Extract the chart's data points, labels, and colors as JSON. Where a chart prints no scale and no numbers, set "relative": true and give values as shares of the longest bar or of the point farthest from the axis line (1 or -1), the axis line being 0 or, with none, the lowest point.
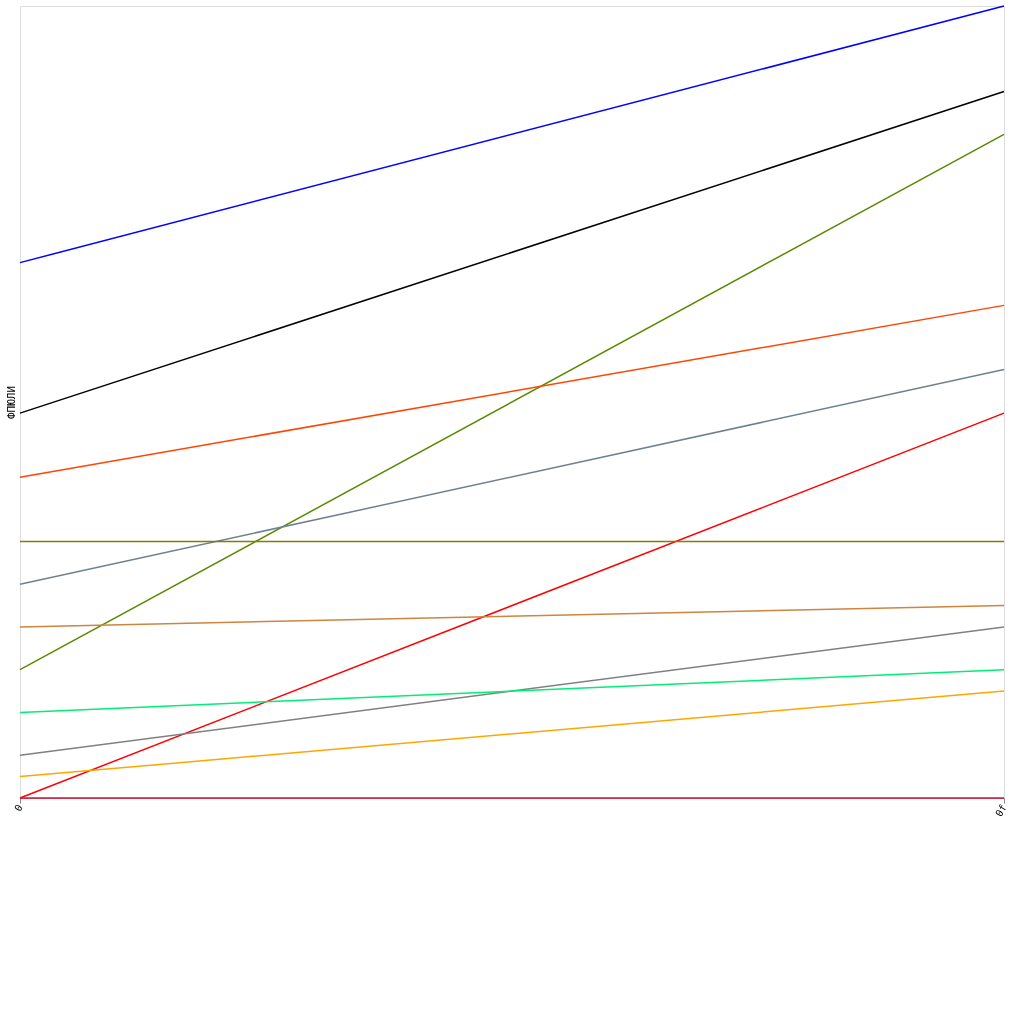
{
  "chart_data": {
    "type": "line",
    "ylabel": "ФПЮЛИ",
    "relative": true,
    "categories": [
      "0",
      "0f"
    ],
    "legend": false,
    "marker": "none",
    "line_style": "solid",
    "series": [
      {
        "color": "#0000ff",
        "values": [
          0.676,
          1
        ]
      },
      {
        "color": "#000000",
        "values": [
          0.486,
          0.892
        ]
      },
      {
        "color": "#5a8a00",
        "values": [
          0.162,
          0.838
        ]
      },
      {
        "color": "#ff4500",
        "values": [
          0.405,
          0.622
        ]
      },
      {
        "color": "#708090",
        "values": [
          0.27,
          0.541
        ]
      },
      {
        "color": "#ff0000",
        "values": [
          0,
          0.486
        ]
      },
      {
        "color": "#808000",
        "values": [
          0.324,
          0.324
        ]
      },
      {
        "color": "#cd853f",
        "values": [
          0.216,
          0.243
        ]
      },
      {
        "color": "#808080",
        "values": [
          0.054,
          0.216
        ]
      },
      {
        "color": "#00ee76",
        "values": [
          0.108,
          0.162
        ]
      },
      {
        "color": "#ffa500",
        "values": [
          0.027,
          0.135
        ]
      },
      {
        "color": "#dc143c",
        "values": [
          0,
          0
        ]
      }
    ]
  }
}
